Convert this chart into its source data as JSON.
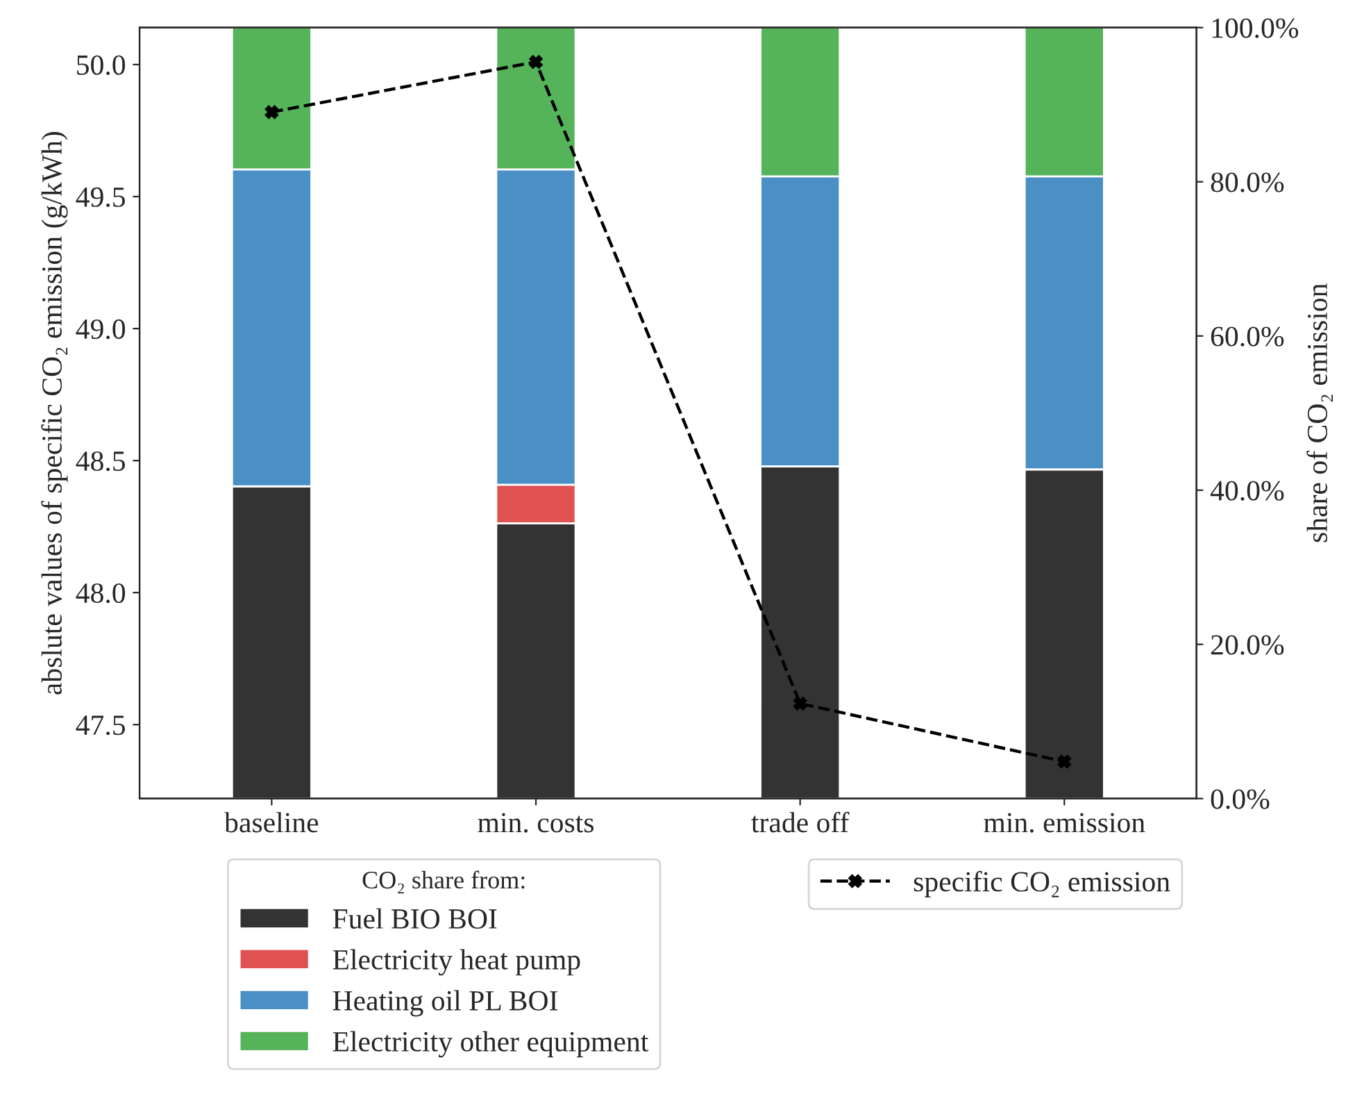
{
  "chart_data": {
    "type": "bar",
    "stacked": true,
    "categories": [
      "baseline",
      "min. costs",
      "trade off",
      "min. emission"
    ],
    "ylabel": "abslute values of specific CO₂ emission (g/kWh)",
    "y2label": "share of CO₂ emission",
    "legend_title": "CO₂ share from:",
    "ylim": [
      47.22,
      50.14
    ],
    "yticks": [
      {
        "value": 47.5,
        "label": "47.5"
      },
      {
        "value": 48.0,
        "label": "48.0"
      },
      {
        "value": 48.5,
        "label": "48.5"
      },
      {
        "value": 49.0,
        "label": "49.0"
      },
      {
        "value": 49.5,
        "label": "49.5"
      },
      {
        "value": 50.0,
        "label": "50.0"
      }
    ],
    "y2lim": [
      0,
      100
    ],
    "y2ticks": [
      {
        "value": 0,
        "label": "0.0%"
      },
      {
        "value": 20,
        "label": "20.0%"
      },
      {
        "value": 40,
        "label": "40.0%"
      },
      {
        "value": 60,
        "label": "60.0%"
      },
      {
        "value": 80,
        "label": "80.0%"
      },
      {
        "value": 100,
        "label": "100.0%"
      }
    ],
    "legend": "bottom",
    "grid": false,
    "series": [
      {
        "name": "Fuel BIO BOI",
        "color": "#333333",
        "axis": "y2",
        "values": [
          40.5,
          35.7,
          43.1,
          42.7
        ]
      },
      {
        "name": "Electricity heat pump",
        "color": "#e05252",
        "axis": "y2",
        "values": [
          0,
          5.0,
          0,
          0
        ]
      },
      {
        "name": "Heating oil PL BOI",
        "color": "#4a90c4",
        "axis": "y2",
        "values": [
          41.1,
          40.9,
          37.6,
          38.0
        ]
      },
      {
        "name": "Electricity other equipment",
        "color": "#55b35a",
        "axis": "y2",
        "values": [
          18.4,
          18.4,
          19.3,
          19.3
        ]
      },
      {
        "name": "specific CO₂ emission",
        "type": "line",
        "color": "#000000",
        "axis": "y",
        "marker": "cross",
        "line_style": "dashed",
        "values": [
          49.82,
          50.01,
          47.58,
          47.36
        ]
      }
    ]
  }
}
